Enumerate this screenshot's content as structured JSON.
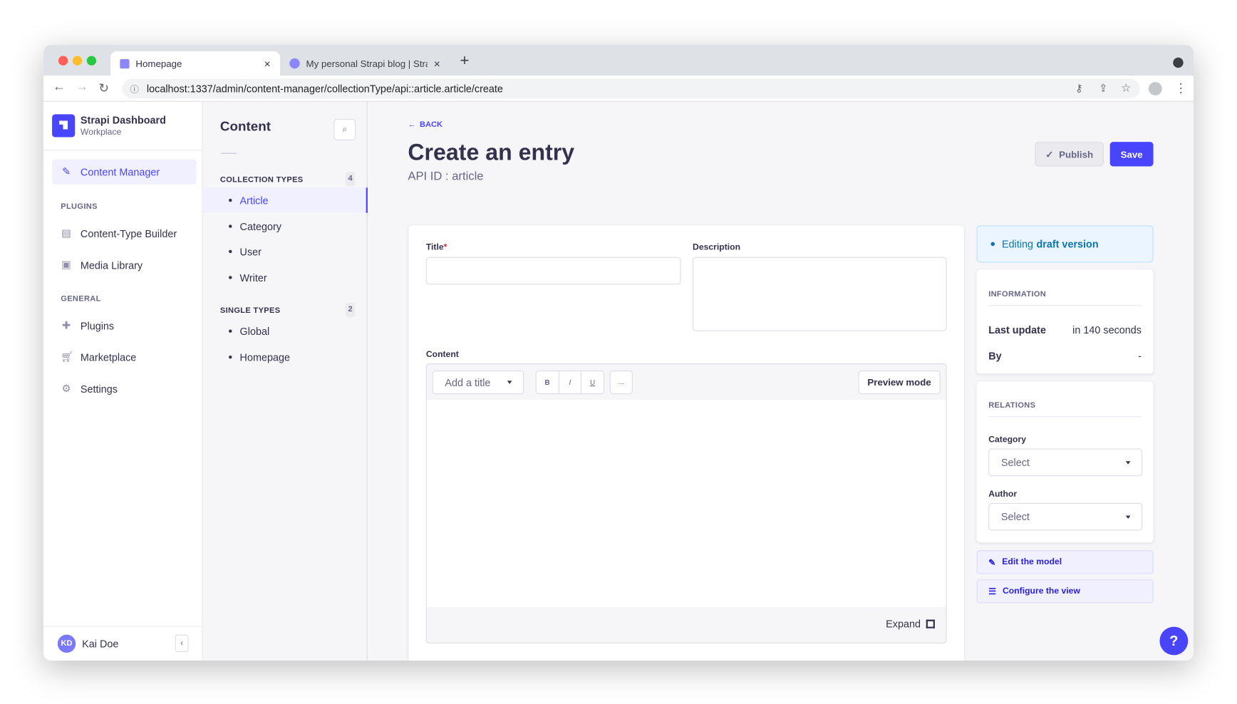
{
  "browser": {
    "tabs": [
      {
        "label": "Homepage",
        "active": true
      },
      {
        "label": "My personal Strapi blog | Strap",
        "active": false
      }
    ],
    "url": "localhost:1337/admin/content-manager/collectionType/api::article.article/create"
  },
  "sidebar": {
    "brand": {
      "title": "Strapi Dashboard",
      "subtitle": "Workplace"
    },
    "active_item": "Content Manager",
    "sections": [
      {
        "label": "PLUGINS",
        "items": [
          "Content-Type Builder",
          "Media Library"
        ]
      },
      {
        "label": "GENERAL",
        "items": [
          "Plugins",
          "Marketplace",
          "Settings"
        ]
      }
    ],
    "user": {
      "initials": "KD",
      "name": "Kai Doe"
    }
  },
  "content_panel": {
    "title": "Content",
    "collection_types": {
      "label": "COLLECTION TYPES",
      "count": "4",
      "items": [
        "Article",
        "Category",
        "User",
        "Writer"
      ],
      "active": "Article"
    },
    "single_types": {
      "label": "SINGLE TYPES",
      "count": "2",
      "items": [
        "Global",
        "Homepage"
      ]
    }
  },
  "header": {
    "back": "BACK",
    "title": "Create an entry",
    "subtitle": "API ID : article",
    "publish": "Publish",
    "save": "Save"
  },
  "form": {
    "title_label": "Title",
    "required_mark": "*",
    "title_value": "",
    "description_label": "Description",
    "description_value": "",
    "content_label": "Content",
    "editor": {
      "heading_select": "Add a title",
      "bold": "B",
      "italic": "I",
      "underline": "U",
      "more": "...",
      "preview": "Preview mode",
      "expand": "Expand"
    }
  },
  "right": {
    "draft": {
      "prefix": "Editing",
      "strong": "draft version"
    },
    "information": {
      "label": "INFORMATION",
      "last_update_label": "Last update",
      "last_update_value": "in 140 seconds",
      "by_label": "By",
      "by_value": "-"
    },
    "relations": {
      "label": "RELATIONS",
      "fields": [
        {
          "label": "Category",
          "placeholder": "Select"
        },
        {
          "label": "Author",
          "placeholder": "Select"
        }
      ]
    },
    "edit_model": "Edit the model",
    "configure_view": "Configure the view"
  },
  "help": "?",
  "colors": {
    "primary": "#4945ff",
    "primary_light": "#f0f0ff",
    "draft_bg": "#eaf5ff",
    "draft_text": "#0c75af"
  }
}
